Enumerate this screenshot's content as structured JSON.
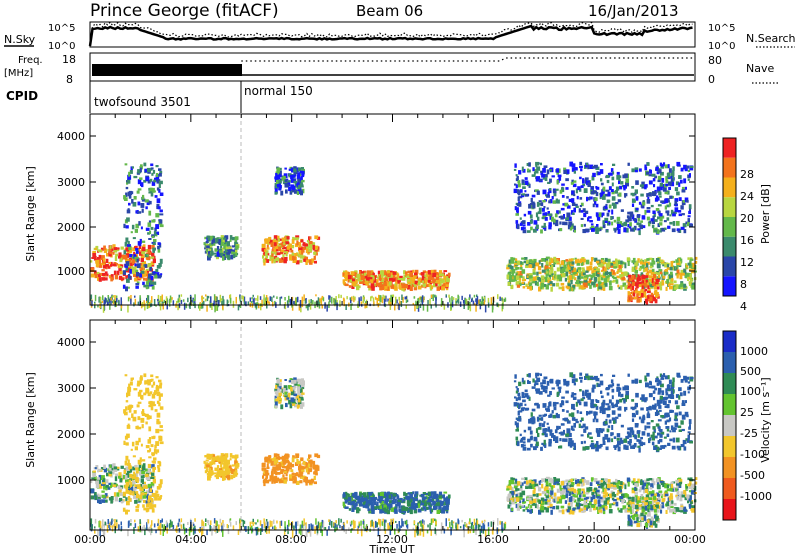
{
  "header": {
    "station": "Prince George (fitACF)",
    "beam": "Beam 06",
    "date": "16/Jan/2013"
  },
  "top_panels": {
    "nsky_label": "N.Sky",
    "nsky_ticks": [
      "10^5",
      "10^0"
    ],
    "nsearch_label": "N.Search",
    "nsearch_ticks": [
      "10^5",
      "10^0"
    ],
    "freq_label_1": "Freq.",
    "freq_label_2": "[MHz]",
    "freq_ticks": [
      "18",
      "8"
    ],
    "nave_label": "Nave",
    "nave_ticks": [
      "80",
      "0"
    ],
    "cpid_label": "CPID",
    "cpid_modes": [
      "twofsound 3501",
      "normal 150"
    ]
  },
  "power_panel": {
    "ylabel": "Slant Range [km]",
    "yticks": [
      "4000",
      "3000",
      "2000",
      "1000"
    ],
    "colorbar_label": "Power [dB]",
    "colorbar_ticks": [
      "28",
      "24",
      "20",
      "16",
      "12",
      "8",
      "4"
    ],
    "colors": [
      "#1515ff",
      "#2a46a8",
      "#3b8a6c",
      "#63b84a",
      "#b8d640",
      "#f4b01c",
      "#f3731c",
      "#ee2222"
    ]
  },
  "velocity_panel": {
    "ylabel": "Slant Range [km]",
    "yticks": [
      "4000",
      "3000",
      "2000",
      "1000"
    ],
    "colorbar_label": "Velocity [m s⁻¹]",
    "colorbar_ticks": [
      "1000",
      "500",
      "100",
      "25",
      "-25",
      "-100",
      "-500",
      "-1000"
    ],
    "colors": [
      "#1a2cc7",
      "#2b5fae",
      "#2f8b55",
      "#63c430",
      "#c8c8c4",
      "#f2c62c",
      "#f29222",
      "#ef5a1e",
      "#e8141a"
    ]
  },
  "xaxis": {
    "label": "Time UT",
    "ticks": [
      "00:00",
      "04:00",
      "08:00",
      "12:00",
      "16:00",
      "20:00",
      "00:00"
    ]
  },
  "chart_data": {
    "type": "heatmap",
    "title": "Prince George (fitACF)",
    "x_range_hours": [
      0,
      24
    ],
    "y_range_km": [
      180,
      4600
    ],
    "xlabel": "Time UT",
    "ylabel": "Slant Range [km]",
    "cpid_switch_hour": 6.0,
    "power_scale_db": [
      0,
      30
    ],
    "velocity_scale_ms": [
      -1000,
      1000
    ],
    "echo_regions": [
      {
        "t": [
          0.0,
          2.5
        ],
        "r": [
          800,
          1600
        ],
        "power_db": 24,
        "velocity_ms": 0
      },
      {
        "t": [
          1.3,
          2.8
        ],
        "r": [
          600,
          3500
        ],
        "power_db": 8,
        "velocity_ms": -300
      },
      {
        "t": [
          4.5,
          5.8
        ],
        "r": [
          1300,
          1800
        ],
        "power_db": 10,
        "velocity_ms": -400
      },
      {
        "t": [
          6.8,
          9.0
        ],
        "r": [
          1200,
          1800
        ],
        "power_db": 22,
        "velocity_ms": -600
      },
      {
        "t": [
          7.3,
          8.4
        ],
        "r": [
          2800,
          3400
        ],
        "power_db": 6,
        "velocity_ms": 0
      },
      {
        "t": [
          10.0,
          14.2
        ],
        "r": [
          600,
          1000
        ],
        "power_db": 22,
        "velocity_ms": 150
      },
      {
        "t": [
          16.5,
          24.0
        ],
        "r": [
          600,
          1300
        ],
        "power_db": 16,
        "velocity_ms": 0
      },
      {
        "t": [
          16.8,
          23.8
        ],
        "r": [
          1900,
          3500
        ],
        "power_db": 6,
        "velocity_ms": 200
      },
      {
        "t": [
          21.3,
          22.5
        ],
        "r": [
          300,
          900
        ],
        "power_db": 26,
        "velocity_ms": 0
      }
    ]
  }
}
